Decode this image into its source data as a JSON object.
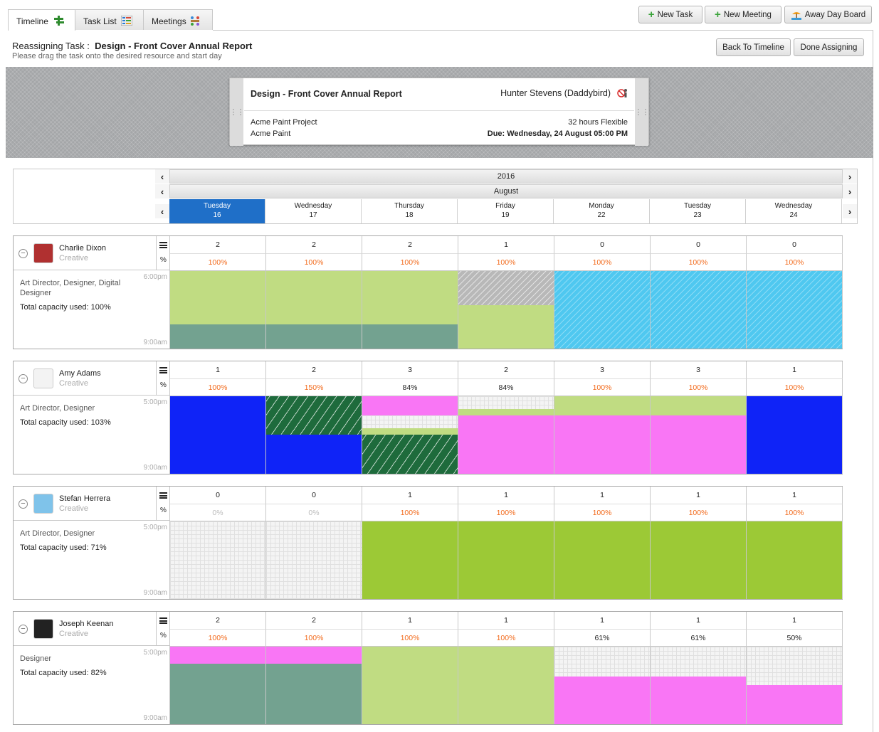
{
  "tabs": [
    {
      "label": "Timeline"
    },
    {
      "label": "Task List"
    },
    {
      "label": "Meetings"
    }
  ],
  "toolbar": {
    "new_task": "New Task",
    "new_meeting": "New Meeting",
    "away_day_board": "Away Day Board"
  },
  "reassign": {
    "prefix": "Reassigning Task :",
    "task_name": "Design - Front Cover Annual Report",
    "instruction": "Please drag the task onto the desired resource and start day",
    "back": "Back To Timeline",
    "done": "Done Assigning"
  },
  "card": {
    "title": "Design - Front Cover Annual Report",
    "assignee": "Hunter Stevens (Daddybird)",
    "project": "Acme Paint Project",
    "client": "Acme Paint",
    "hours": "32 hours Flexible",
    "due": "Due: Wednesday, 24 August 05:00 PM"
  },
  "calendar": {
    "year": "2016",
    "month": "August",
    "days": [
      {
        "name": "Tuesday",
        "num": "16"
      },
      {
        "name": "Wednesday",
        "num": "17"
      },
      {
        "name": "Thursday",
        "num": "18"
      },
      {
        "name": "Friday",
        "num": "19"
      },
      {
        "name": "Monday",
        "num": "22"
      },
      {
        "name": "Tuesday",
        "num": "23"
      },
      {
        "name": "Wednesday",
        "num": "24"
      }
    ]
  },
  "colors": {
    "accent": "#1f6fc8",
    "over": "#f26b1d",
    "light_green": "#c0dc82",
    "teal": "#73a290",
    "blue": "#0f23f7",
    "pink": "#f976f5",
    "green": "#9cc936",
    "cyan": "#4fc8f0"
  },
  "resources": [
    {
      "name": "Charlie Dixon",
      "role": "Creative",
      "skills": "Art Director, Designer, Digital Designer",
      "capacity": "Total capacity used: 100%",
      "time_top": "6:00pm",
      "time_bottom": "9:00am",
      "counts": [
        "2",
        "2",
        "2",
        "1",
        "0",
        "0",
        "0"
      ],
      "pcts": [
        "100%",
        "100%",
        "100%",
        "100%",
        "100%",
        "100%",
        "100%"
      ]
    },
    {
      "name": "Amy Adams",
      "role": "Creative",
      "skills": "Art Director, Designer",
      "capacity": "Total capacity used: 103%",
      "time_top": "5:00pm",
      "time_bottom": "9:00am",
      "counts": [
        "1",
        "2",
        "3",
        "2",
        "3",
        "3",
        "1"
      ],
      "pcts": [
        "100%",
        "150%",
        "84%",
        "84%",
        "100%",
        "100%",
        "100%"
      ]
    },
    {
      "name": "Stefan Herrera",
      "role": "Creative",
      "skills": "Art Director, Designer",
      "capacity": "Total capacity used: 71%",
      "time_top": "5:00pm",
      "time_bottom": "9:00am",
      "counts": [
        "0",
        "0",
        "1",
        "1",
        "1",
        "1",
        "1"
      ],
      "pcts": [
        "0%",
        "0%",
        "100%",
        "100%",
        "100%",
        "100%",
        "100%"
      ]
    },
    {
      "name": "Joseph Keenan",
      "role": "Creative",
      "skills": "Designer",
      "capacity": "Total capacity used: 82%",
      "time_top": "5:00pm",
      "time_bottom": "9:00am",
      "counts": [
        "2",
        "2",
        "1",
        "1",
        "1",
        "1",
        "1"
      ],
      "pcts": [
        "100%",
        "100%",
        "100%",
        "100%",
        "61%",
        "61%",
        "50%"
      ]
    }
  ]
}
